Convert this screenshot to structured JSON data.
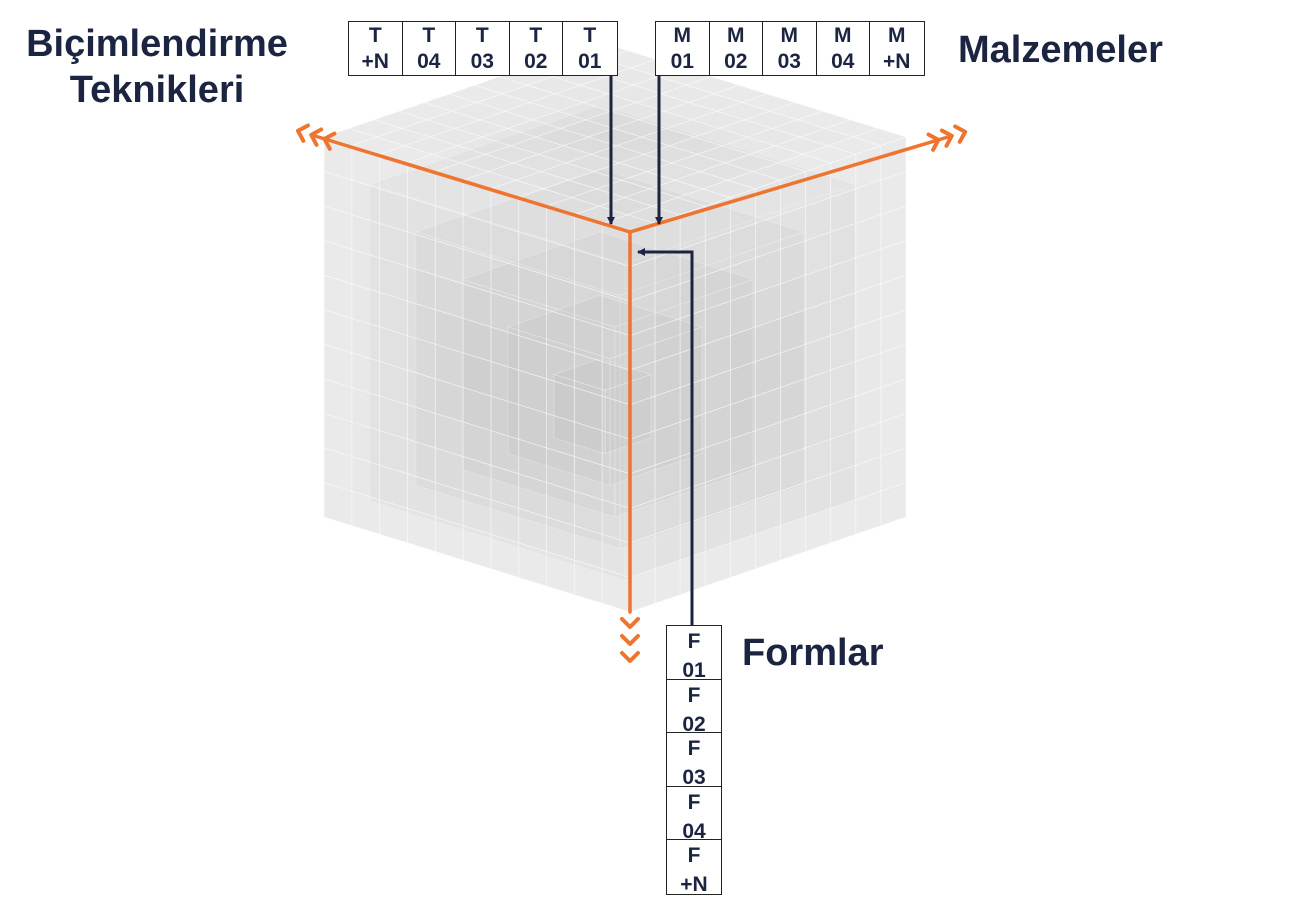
{
  "labels": {
    "left": [
      "Biçimlendirme",
      "Teknikleri"
    ],
    "right": "Malzemeler",
    "bottom": "Formlar"
  },
  "tables": {
    "techniques": [
      {
        "top": "T",
        "bottom": "+N"
      },
      {
        "top": "T",
        "bottom": "04"
      },
      {
        "top": "T",
        "bottom": "03"
      },
      {
        "top": "T",
        "bottom": "02"
      },
      {
        "top": "T",
        "bottom": "01"
      }
    ],
    "materials": [
      {
        "top": "M",
        "bottom": "01"
      },
      {
        "top": "M",
        "bottom": "02"
      },
      {
        "top": "M",
        "bottom": "03"
      },
      {
        "top": "M",
        "bottom": "04"
      },
      {
        "top": "M",
        "bottom": "+N"
      }
    ],
    "forms": [
      {
        "top": "F",
        "bottom": "01"
      },
      {
        "top": "F",
        "bottom": "02"
      },
      {
        "top": "F",
        "bottom": "03"
      },
      {
        "top": "F",
        "bottom": "04"
      },
      {
        "top": "F",
        "bottom": "+N"
      }
    ]
  },
  "colors": {
    "axis": "#ee7430",
    "connector": "#1b2440",
    "text": "#1b2440",
    "cube": "#7a7a7a"
  }
}
